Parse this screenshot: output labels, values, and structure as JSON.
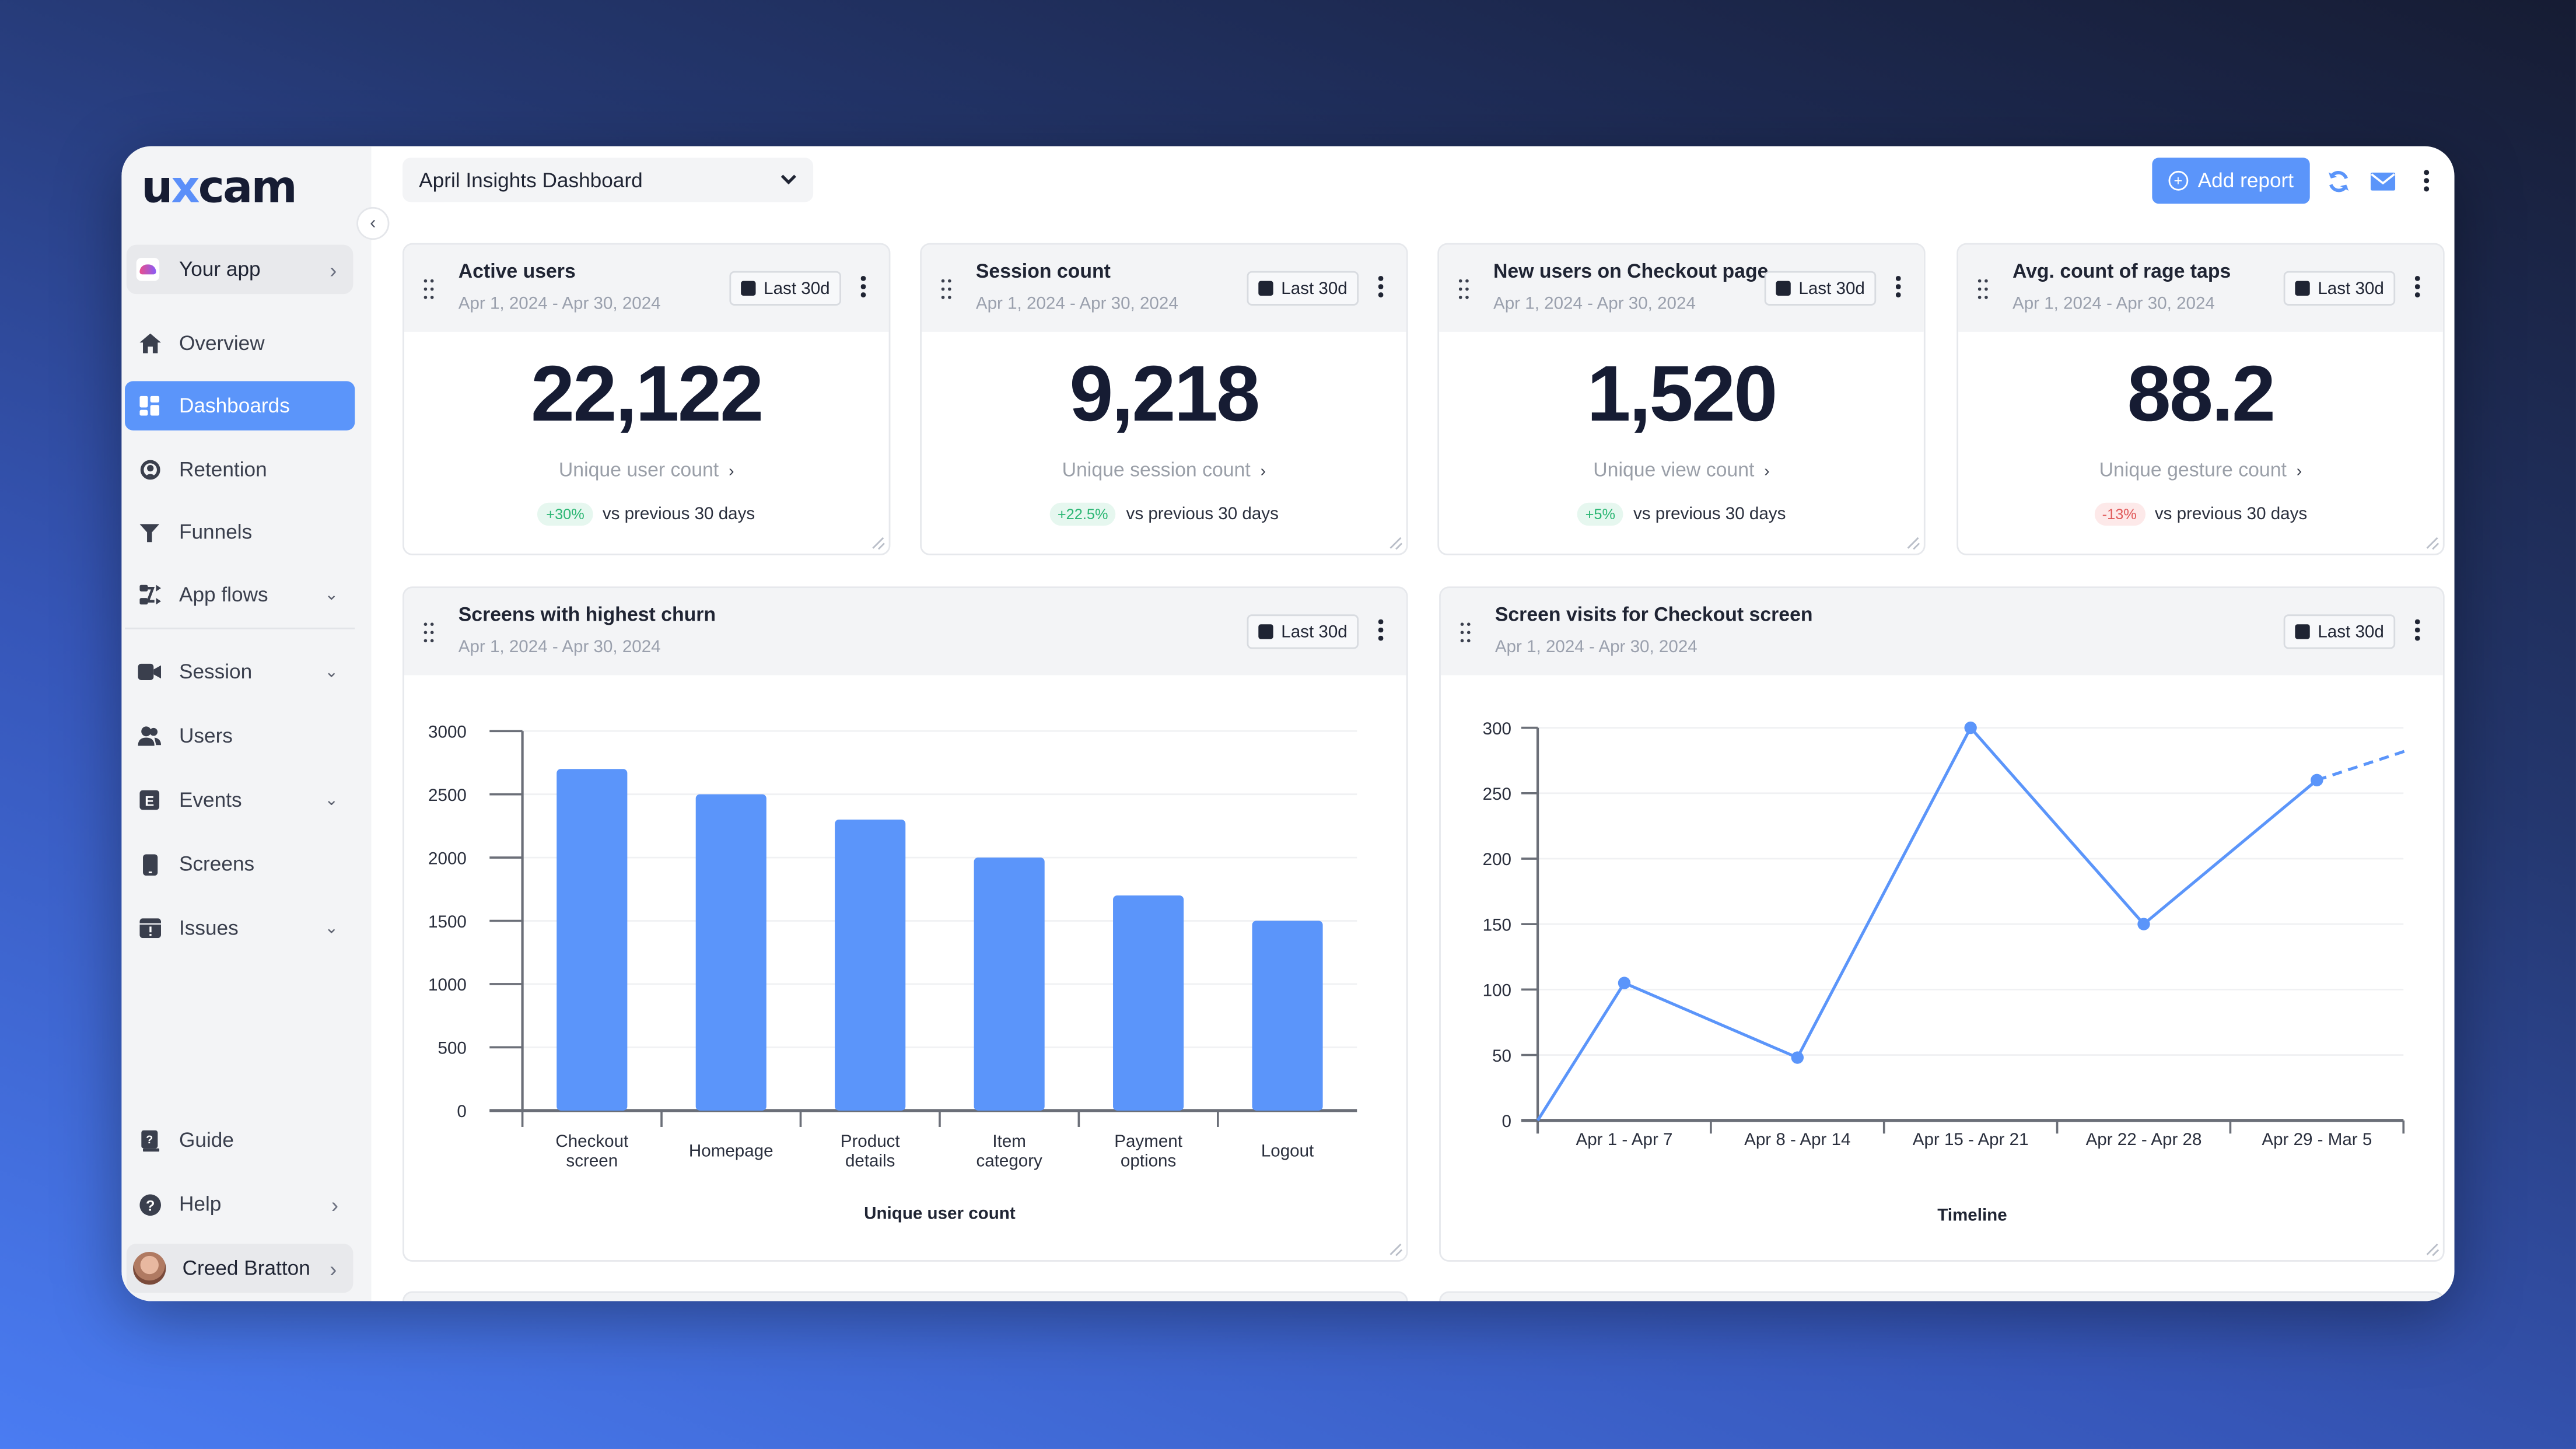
{
  "app": {
    "logo_prefix": "u",
    "logo_x": "x",
    "logo_suffix": "cam",
    "collapse_icon": "chevron-left-icon",
    "current_app": "Your app"
  },
  "sidebar": {
    "items": [
      {
        "label": "Overview",
        "icon": "home-icon",
        "active": false,
        "expandable": false
      },
      {
        "label": "Dashboards",
        "icon": "dashboard-icon",
        "active": true,
        "expandable": false
      },
      {
        "label": "Retention",
        "icon": "retention-icon",
        "active": false,
        "expandable": false
      },
      {
        "label": "Funnels",
        "icon": "funnel-icon",
        "active": false,
        "expandable": false
      },
      {
        "label": "App flows",
        "icon": "flows-icon",
        "active": false,
        "expandable": true
      },
      {
        "label": "Session",
        "icon": "video-icon",
        "active": false,
        "expandable": true
      },
      {
        "label": "Users",
        "icon": "users-icon",
        "active": false,
        "expandable": false
      },
      {
        "label": "Events",
        "icon": "events-icon",
        "active": false,
        "expandable": true
      },
      {
        "label": "Screens",
        "icon": "phone-icon",
        "active": false,
        "expandable": false
      },
      {
        "label": "Issues",
        "icon": "issues-icon",
        "active": false,
        "expandable": true
      }
    ],
    "bottom_items": [
      {
        "label": "Guide",
        "icon": "guide-book-icon"
      },
      {
        "label": "Help",
        "icon": "help-icon"
      }
    ],
    "user": {
      "name": "Creed Bratton"
    }
  },
  "header": {
    "dashboard_select": "April Insights Dashboard",
    "add_report_label": "Add report",
    "icons": [
      "refresh-icon",
      "mail-icon",
      "more-vertical-icon"
    ]
  },
  "colors": {
    "accent": "#5b95fa",
    "positive": "#2bb673",
    "negative": "#e05a5a",
    "text_dark": "#161c33"
  },
  "metric_cards": [
    {
      "title": "Active users",
      "date_range": "Apr 1, 2024 - Apr 30, 2024",
      "range_label": "Last 30d",
      "value": "22,122",
      "metric_label": "Unique user count",
      "change": "+30%",
      "change_direction": "up",
      "compare_label": "vs previous 30 days"
    },
    {
      "title": "Session count",
      "date_range": "Apr 1, 2024 - Apr 30, 2024",
      "range_label": "Last 30d",
      "value": "9,218",
      "metric_label": "Unique session count",
      "change": "+22.5%",
      "change_direction": "up",
      "compare_label": "vs previous 30 days"
    },
    {
      "title": "New users on Checkout page",
      "date_range": "Apr 1, 2024 - Apr 30, 2024",
      "range_label": "Last 30d",
      "value": "1,520",
      "metric_label": "Unique view count",
      "change": "+5%",
      "change_direction": "up",
      "compare_label": "vs previous 30 days"
    },
    {
      "title": "Avg. count of rage taps",
      "date_range": "Apr 1, 2024 - Apr 30, 2024",
      "range_label": "Last 30d",
      "value": "88.2",
      "metric_label": "Unique gesture count",
      "change": "-13%",
      "change_direction": "down",
      "compare_label": "vs previous 30 days"
    }
  ],
  "chart_cards": [
    {
      "title": "Screens with highest churn",
      "date_range": "Apr 1, 2024 - Apr 30, 2024",
      "range_label": "Last 30d"
    },
    {
      "title": "Screen visits for Checkout screen",
      "date_range": "Apr 1, 2024 - Apr 30, 2024",
      "range_label": "Last 30d"
    }
  ],
  "chart_data": [
    {
      "type": "bar",
      "title": "Screens with highest churn",
      "categories": [
        "Checkout screen",
        "Homepage",
        "Product details",
        "Item category",
        "Payment options",
        "Logout"
      ],
      "category_lines": [
        [
          "Checkout",
          "screen"
        ],
        [
          "Homepage"
        ],
        [
          "Product",
          "details"
        ],
        [
          "Item",
          "category"
        ],
        [
          "Payment",
          "options"
        ],
        [
          "Logout"
        ]
      ],
      "values": [
        2700,
        2500,
        2300,
        2000,
        1700,
        1500
      ],
      "xlabel": "Unique user count",
      "ylabel": "",
      "ylim": [
        0,
        3000
      ],
      "yticks": [
        0,
        500,
        1000,
        1500,
        2000,
        2500,
        3000
      ],
      "grid": true,
      "color": "#5b95fa"
    },
    {
      "type": "line",
      "title": "Screen visits for Checkout screen",
      "categories": [
        "Apr 1 - Apr 7",
        "Apr 8 - Apr 14",
        "Apr 15 - Apr 21",
        "Apr 22 - Apr 28",
        "Apr 29 - Mar 5"
      ],
      "values": [
        105,
        48,
        300,
        150,
        260
      ],
      "start_value": 0,
      "projected_end": 283,
      "xlabel": "Timeline",
      "ylabel": "",
      "ylim": [
        0,
        300
      ],
      "yticks": [
        0,
        50,
        100,
        150,
        200,
        250,
        300
      ],
      "grid": true,
      "color": "#5b95fa"
    }
  ]
}
